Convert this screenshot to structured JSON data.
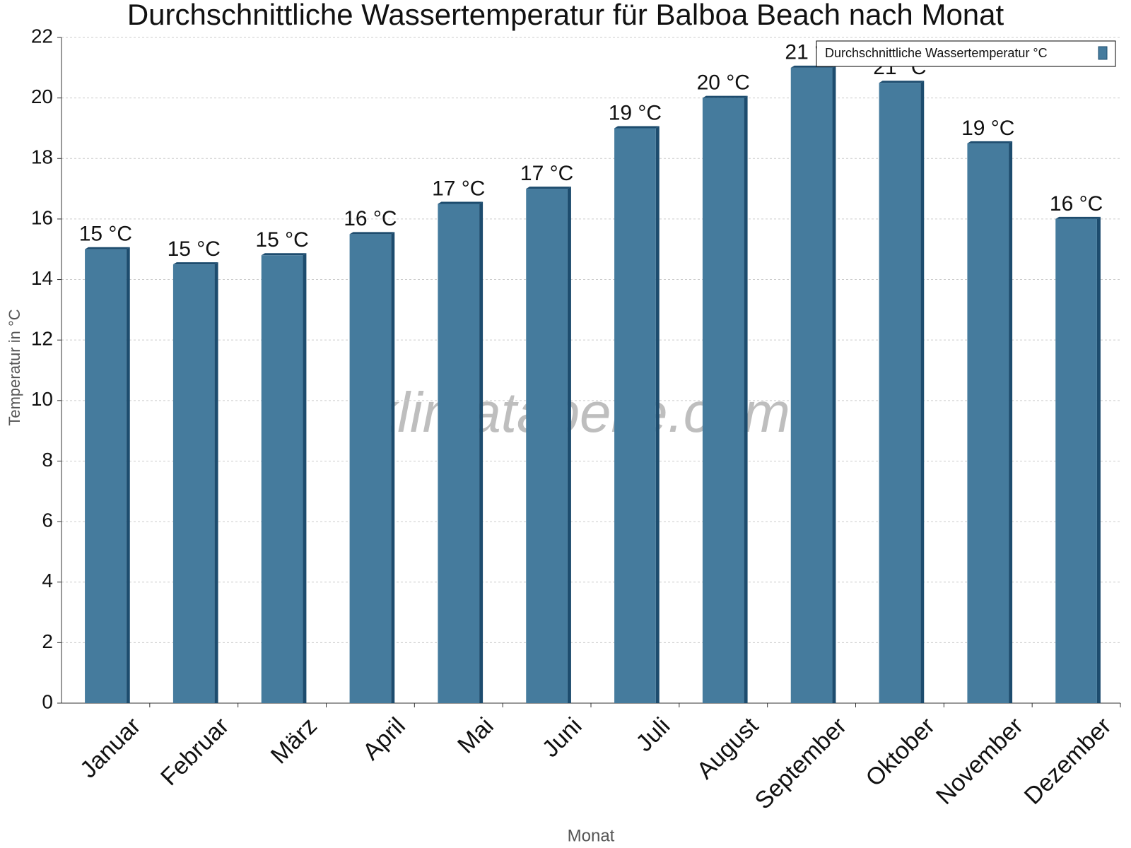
{
  "chart_data": {
    "type": "bar",
    "title": "Durchschnittliche Wassertemperatur für Balboa Beach nach Monat",
    "xlabel": "Monat",
    "ylabel": "Temperatur in °C",
    "watermark": "klimatabelle.com",
    "categories": [
      "Januar",
      "Februar",
      "März",
      "April",
      "Mai",
      "Juni",
      "Juli",
      "August",
      "September",
      "Oktober",
      "November",
      "Dezember"
    ],
    "series": [
      {
        "name": "Durchschnittliche Wassertemperatur °C",
        "color": "#457b9d",
        "values": [
          15.0,
          14.5,
          14.8,
          15.5,
          16.5,
          17.0,
          19.0,
          20.0,
          21.0,
          20.5,
          18.5,
          16.0
        ],
        "value_labels": [
          "15 °C",
          "15 °C",
          "15 °C",
          "16 °C",
          "17 °C",
          "17 °C",
          "19 °C",
          "20 °C",
          "21 °C",
          "21 °C",
          "19 °C",
          "16 °C"
        ]
      }
    ],
    "ylim": [
      0,
      22
    ],
    "yticks": [
      0,
      2,
      4,
      6,
      8,
      10,
      12,
      14,
      16,
      18,
      20,
      22
    ],
    "grid": true,
    "legend": "top-right"
  }
}
